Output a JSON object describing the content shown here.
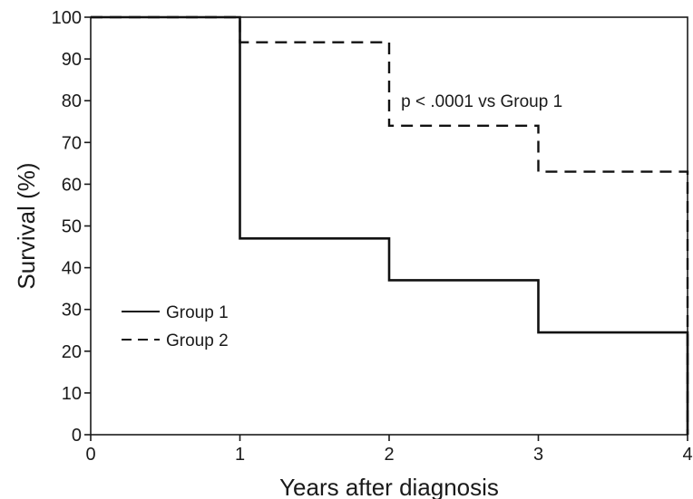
{
  "chart_data": {
    "type": "line",
    "subtype": "step",
    "title": "",
    "xlabel": "Years after diagnosis",
    "ylabel": "Survival (%)",
    "xlim": [
      0,
      4
    ],
    "ylim": [
      0,
      100
    ],
    "x_ticks": [
      0,
      1,
      2,
      3,
      4
    ],
    "y_ticks": [
      0,
      10,
      20,
      30,
      40,
      50,
      60,
      70,
      80,
      90,
      100
    ],
    "grid": false,
    "legend_position": "bottom-left",
    "series": [
      {
        "name": "Group 1",
        "style": "solid",
        "color": "#111111",
        "x": [
          0,
          1,
          2,
          3,
          4,
          4
        ],
        "y": [
          100,
          47,
          37,
          24.5,
          24.5,
          0
        ]
      },
      {
        "name": "Group 2",
        "style": "dashed",
        "color": "#111111",
        "x": [
          0,
          1,
          2,
          3,
          4,
          4
        ],
        "y": [
          100,
          94,
          74,
          63,
          63,
          0
        ]
      }
    ],
    "annotations": [
      {
        "text": "p < .0001 vs Group 1",
        "x": 2.08,
        "y": 78.5
      }
    ]
  }
}
